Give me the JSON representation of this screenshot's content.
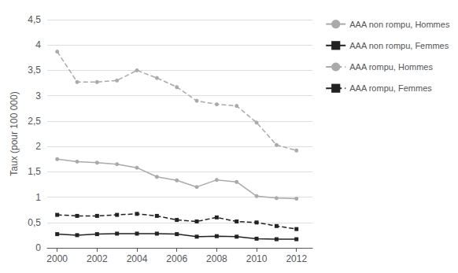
{
  "chart_data": {
    "type": "line",
    "ylabel": "Taux (pour 100 000)",
    "x": [
      2000,
      2001,
      2002,
      2003,
      2004,
      2005,
      2006,
      2007,
      2008,
      2009,
      2010,
      2011,
      2012
    ],
    "series": [
      {
        "name": "AAA non rompu, Hommes",
        "color": "#aaaaaa",
        "marker": "circle",
        "line_style": "solid",
        "values": [
          1.75,
          1.7,
          1.68,
          1.65,
          1.58,
          1.4,
          1.33,
          1.2,
          1.34,
          1.3,
          1.02,
          0.98,
          0.97
        ]
      },
      {
        "name": "AAA non rompu, Femmes",
        "color": "#222222",
        "marker": "square",
        "line_style": "solid",
        "values": [
          0.27,
          0.25,
          0.27,
          0.28,
          0.28,
          0.28,
          0.27,
          0.22,
          0.23,
          0.22,
          0.18,
          0.17,
          0.17
        ]
      },
      {
        "name": "AAA rompu, Hommes",
        "color": "#aaaaaa",
        "marker": "circle",
        "line_style": "dashed",
        "values": [
          3.87,
          3.27,
          3.27,
          3.3,
          3.5,
          3.35,
          3.17,
          2.9,
          2.83,
          2.8,
          2.47,
          2.03,
          1.92
        ]
      },
      {
        "name": "AAA rompu, Femmes",
        "color": "#222222",
        "marker": "square",
        "line_style": "dashed",
        "values": [
          0.65,
          0.63,
          0.63,
          0.65,
          0.67,
          0.63,
          0.55,
          0.52,
          0.6,
          0.52,
          0.5,
          0.43,
          0.37
        ]
      }
    ],
    "xlim": [
      1999.5,
      2012.8
    ],
    "xticks": [
      2000,
      2002,
      2004,
      2006,
      2008,
      2010,
      2012
    ],
    "ylim": [
      0,
      4.5
    ],
    "yticks": [
      0,
      {
        "value": 0.5,
        "label": "0,5"
      },
      1,
      {
        "value": 1.5,
        "label": "1,5"
      },
      2,
      {
        "value": 2.5,
        "label": "2,5"
      },
      3,
      {
        "value": 3.5,
        "label": "3,5"
      },
      4,
      {
        "value": 4.5,
        "label": "4,5"
      }
    ],
    "grid": true,
    "legend": "right"
  }
}
